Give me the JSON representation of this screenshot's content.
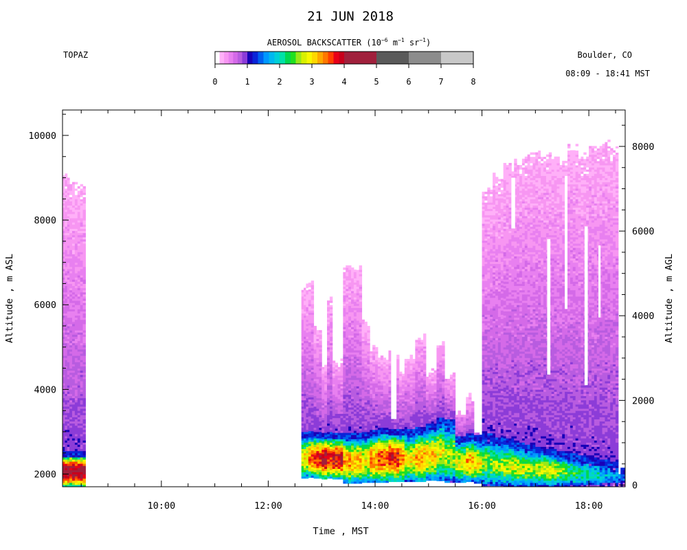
{
  "title": "21 JUN 2018",
  "instrument": "TOPAZ",
  "location": "Boulder, CO",
  "time_range": "08:09 - 18:41 MST",
  "colorbar": {
    "title_main": "AEROSOL BACKSCATTER (10",
    "title_exp1": "−6",
    "title_mid1": " m",
    "title_exp2": "−1",
    "title_mid2": " sr",
    "title_exp3": "−1",
    "title_end": ")",
    "tick_labels": [
      "0",
      "1",
      "2",
      "3",
      "4",
      "5",
      "6",
      "7",
      "8"
    ],
    "segments": [
      {
        "from": 0.0,
        "to": 0.14,
        "color": "#ffffff"
      },
      {
        "from": 0.14,
        "to": 0.28,
        "color": "#ffb0f8"
      },
      {
        "from": 0.28,
        "to": 0.42,
        "color": "#f796f2"
      },
      {
        "from": 0.42,
        "to": 0.56,
        "color": "#e880f0"
      },
      {
        "from": 0.56,
        "to": 0.7,
        "color": "#d46ae8"
      },
      {
        "from": 0.7,
        "to": 0.84,
        "color": "#b85ce0"
      },
      {
        "from": 0.84,
        "to": 1.0,
        "color": "#8c3cd8"
      },
      {
        "from": 1.0,
        "to": 1.16,
        "color": "#1800b8"
      },
      {
        "from": 1.16,
        "to": 1.33,
        "color": "#0a24d8"
      },
      {
        "from": 1.33,
        "to": 1.5,
        "color": "#0060f0"
      },
      {
        "from": 1.5,
        "to": 1.67,
        "color": "#0098ff"
      },
      {
        "from": 1.67,
        "to": 1.84,
        "color": "#00b8f0"
      },
      {
        "from": 1.84,
        "to": 2.0,
        "color": "#00d0d8"
      },
      {
        "from": 2.0,
        "to": 2.17,
        "color": "#00e0a8"
      },
      {
        "from": 2.17,
        "to": 2.34,
        "color": "#00d850"
      },
      {
        "from": 2.34,
        "to": 2.5,
        "color": "#20e020"
      },
      {
        "from": 2.5,
        "to": 2.67,
        "color": "#98e818"
      },
      {
        "from": 2.67,
        "to": 2.84,
        "color": "#d8f000"
      },
      {
        "from": 2.84,
        "to": 3.0,
        "color": "#f8f800"
      },
      {
        "from": 3.0,
        "to": 3.17,
        "color": "#ffd800"
      },
      {
        "from": 3.17,
        "to": 3.34,
        "color": "#ffa800"
      },
      {
        "from": 3.34,
        "to": 3.5,
        "color": "#ff7800"
      },
      {
        "from": 3.5,
        "to": 3.67,
        "color": "#ff4000"
      },
      {
        "from": 3.67,
        "to": 3.84,
        "color": "#e80018"
      },
      {
        "from": 3.84,
        "to": 4.0,
        "color": "#c8001c"
      },
      {
        "from": 4.0,
        "to": 5.0,
        "color": "#a0203c"
      },
      {
        "from": 5.0,
        "to": 6.0,
        "color": "#5a5a5a"
      },
      {
        "from": 6.0,
        "to": 7.0,
        "color": "#8c8c8c"
      },
      {
        "from": 7.0,
        "to": 8.0,
        "color": "#c8c8c8"
      }
    ]
  },
  "chart_data": {
    "type": "heatmap",
    "title": "21 JUN 2018",
    "xlabel": "Time , MST",
    "ylabel_left": "Altitude , m ASL",
    "ylabel_right": "Altitude , m AGL",
    "xlim_hours": [
      8.15,
      18.68
    ],
    "ylim_asl_m": [
      1700,
      10600
    ],
    "ylim_agl_m": [
      -40,
      8860
    ],
    "x_tick_labels": [
      "10:00",
      "12:00",
      "14:00",
      "16:00",
      "18:00"
    ],
    "x_ticks_hours": [
      10,
      12,
      14,
      16,
      18
    ],
    "y_left_ticks": [
      2000,
      4000,
      6000,
      8000,
      10000
    ],
    "y_right_ticks": [
      0,
      2000,
      4000,
      6000,
      8000
    ],
    "grid": false,
    "value_range": [
      0,
      8
    ],
    "columns": [
      {
        "t0": 8.15,
        "t1": 8.28,
        "top": 9200,
        "pbl": 2450,
        "bot": 1700,
        "low": 3.8
      },
      {
        "t0": 8.28,
        "t1": 8.58,
        "top": 8900,
        "pbl": 2450,
        "bot": 1700,
        "low": 3.7
      },
      {
        "t0": 12.62,
        "t1": 12.75,
        "top": 6550,
        "pbl": 2900,
        "bot": 1900,
        "low": 2.6
      },
      {
        "t0": 12.75,
        "t1": 12.85,
        "top": 6650,
        "pbl": 2900,
        "bot": 1920,
        "low": 3.0
      },
      {
        "t0": 12.85,
        "t1": 13.0,
        "top": 5600,
        "pbl": 2880,
        "bot": 1900,
        "low": 3.3
      },
      {
        "t0": 13.0,
        "t1": 13.1,
        "top": 4650,
        "pbl": 2880,
        "bot": 1880,
        "low": 3.6
      },
      {
        "t0": 13.1,
        "t1": 13.2,
        "top": 6250,
        "pbl": 2900,
        "bot": 1900,
        "low": 3.2
      },
      {
        "t0": 13.2,
        "t1": 13.4,
        "top": 4750,
        "pbl": 2870,
        "bot": 1880,
        "low": 3.4
      },
      {
        "t0": 13.4,
        "t1": 13.55,
        "top": 6950,
        "pbl": 2860,
        "bot": 1780,
        "low": 2.9
      },
      {
        "t0": 13.55,
        "t1": 13.75,
        "top": 7000,
        "pbl": 2880,
        "bot": 1780,
        "low": 2.8
      },
      {
        "t0": 13.75,
        "t1": 13.9,
        "top": 5700,
        "pbl": 2900,
        "bot": 1800,
        "low": 2.6
      },
      {
        "t0": 13.9,
        "t1": 14.05,
        "top": 5100,
        "pbl": 2960,
        "bot": 1800,
        "low": 2.9
      },
      {
        "t0": 14.05,
        "t1": 14.25,
        "top": 4900,
        "pbl": 2980,
        "bot": 1800,
        "low": 3.1
      },
      {
        "t0": 14.25,
        "t1": 14.45,
        "top": 4950,
        "pbl": 2980,
        "bot": 1820,
        "low": 3.3
      },
      {
        "t0": 14.45,
        "t1": 14.55,
        "top": 4500,
        "pbl": 2960,
        "bot": 1820,
        "low": 3.0
      },
      {
        "t0": 14.55,
        "t1": 14.75,
        "top": 4800,
        "pbl": 2960,
        "bot": 1820,
        "low": 2.6
      },
      {
        "t0": 14.75,
        "t1": 14.95,
        "top": 5300,
        "pbl": 3000,
        "bot": 1820,
        "low": 2.9
      },
      {
        "t0": 14.95,
        "t1": 15.15,
        "top": 4500,
        "pbl": 3100,
        "bot": 1850,
        "low": 2.7
      },
      {
        "t0": 15.15,
        "t1": 15.3,
        "top": 5200,
        "pbl": 3250,
        "bot": 1840,
        "low": 2.5
      },
      {
        "t0": 15.3,
        "t1": 15.5,
        "top": 4400,
        "pbl": 3200,
        "bot": 1800,
        "low": 2.3
      },
      {
        "t0": 15.5,
        "t1": 15.7,
        "top": 3600,
        "pbl": 2800,
        "bot": 1800,
        "low": 2.5
      },
      {
        "t0": 15.7,
        "t1": 15.85,
        "top": 3900,
        "pbl": 2850,
        "bot": 1820,
        "low": 2.8
      },
      {
        "t0": 15.85,
        "t1": 16.0,
        "top": 3150,
        "pbl": 2800,
        "bot": 1780,
        "low": 2.6
      },
      {
        "t0": 16.0,
        "t1": 16.2,
        "top": 8750,
        "pbl": 2850,
        "bot": 1720,
        "low": 2.2
      },
      {
        "t0": 16.2,
        "t1": 16.4,
        "top": 9100,
        "pbl": 2780,
        "bot": 1720,
        "low": 2.3
      },
      {
        "t0": 16.4,
        "t1": 16.6,
        "top": 9350,
        "pbl": 2720,
        "bot": 1700,
        "low": 2.4
      },
      {
        "t0": 16.6,
        "t1": 16.8,
        "top": 9450,
        "pbl": 2650,
        "bot": 1700,
        "low": 2.4
      },
      {
        "t0": 16.8,
        "t1": 17.0,
        "top": 9600,
        "pbl": 2600,
        "bot": 1700,
        "low": 2.3
      },
      {
        "t0": 17.0,
        "t1": 17.2,
        "top": 9700,
        "pbl": 2560,
        "bot": 1700,
        "low": 2.4
      },
      {
        "t0": 17.2,
        "t1": 17.4,
        "top": 9650,
        "pbl": 2500,
        "bot": 1700,
        "low": 2.4
      },
      {
        "t0": 17.4,
        "t1": 17.6,
        "top": 9500,
        "pbl": 2450,
        "bot": 1700,
        "low": 2.2
      },
      {
        "t0": 17.6,
        "t1": 17.8,
        "top": 9800,
        "pbl": 2400,
        "bot": 1700,
        "low": 2.0
      },
      {
        "t0": 17.8,
        "t1": 18.0,
        "top": 9600,
        "pbl": 2350,
        "bot": 1700,
        "low": 1.9
      },
      {
        "t0": 18.0,
        "t1": 18.2,
        "top": 9850,
        "pbl": 2300,
        "bot": 1700,
        "low": 1.8
      },
      {
        "t0": 18.2,
        "t1": 18.4,
        "top": 9950,
        "pbl": 2250,
        "bot": 1700,
        "low": 1.6
      },
      {
        "t0": 18.4,
        "t1": 18.55,
        "top": 9800,
        "pbl": 2200,
        "bot": 1700,
        "low": 1.4
      },
      {
        "t0": 18.55,
        "t1": 18.68,
        "top": 2150,
        "pbl": 2100,
        "bot": 1700,
        "low": 1.3
      }
    ],
    "gaps": [
      {
        "t0": 17.22,
        "t1": 17.28,
        "from": 4350,
        "to": 7550
      },
      {
        "t0": 17.92,
        "t1": 17.98,
        "from": 4100,
        "to": 7850
      },
      {
        "t0": 18.18,
        "t1": 18.22,
        "from": 5700,
        "to": 7400
      },
      {
        "t0": 17.55,
        "t1": 17.6,
        "from": 5900,
        "to": 9000
      },
      {
        "t0": 16.55,
        "t1": 16.62,
        "from": 7800,
        "to": 9000
      },
      {
        "t0": 14.3,
        "t1": 14.4,
        "from": 3300,
        "to": 4950
      }
    ]
  }
}
